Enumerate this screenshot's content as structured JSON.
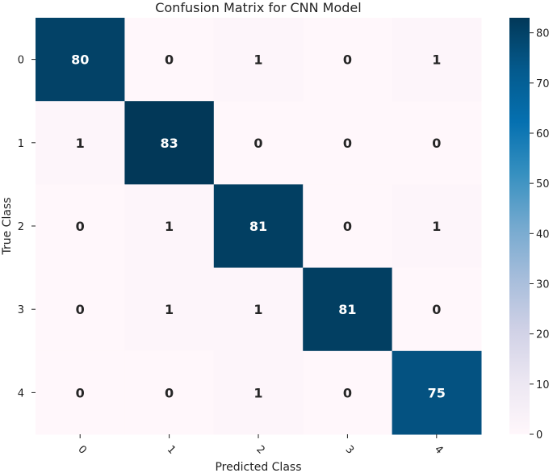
{
  "chart_data": {
    "type": "heatmap",
    "title": "Confusion Matrix for CNN Model",
    "xlabel": "Predicted Class",
    "ylabel": "True Class",
    "x_categories": [
      "0",
      "1",
      "2",
      "3",
      "4"
    ],
    "y_categories": [
      "0",
      "1",
      "2",
      "3",
      "4"
    ],
    "values": [
      [
        80,
        0,
        1,
        0,
        1
      ],
      [
        1,
        83,
        0,
        0,
        0
      ],
      [
        0,
        1,
        81,
        0,
        1
      ],
      [
        0,
        1,
        1,
        81,
        0
      ],
      [
        0,
        0,
        1,
        0,
        75
      ]
    ],
    "colormap": "PuBu",
    "colorbar": {
      "range": [
        0,
        83
      ],
      "ticks": [
        0,
        10,
        20,
        30,
        40,
        50,
        60,
        70,
        80
      ]
    },
    "annotation_colors": {
      "light": "#ffffff",
      "dark": "#262626"
    }
  }
}
